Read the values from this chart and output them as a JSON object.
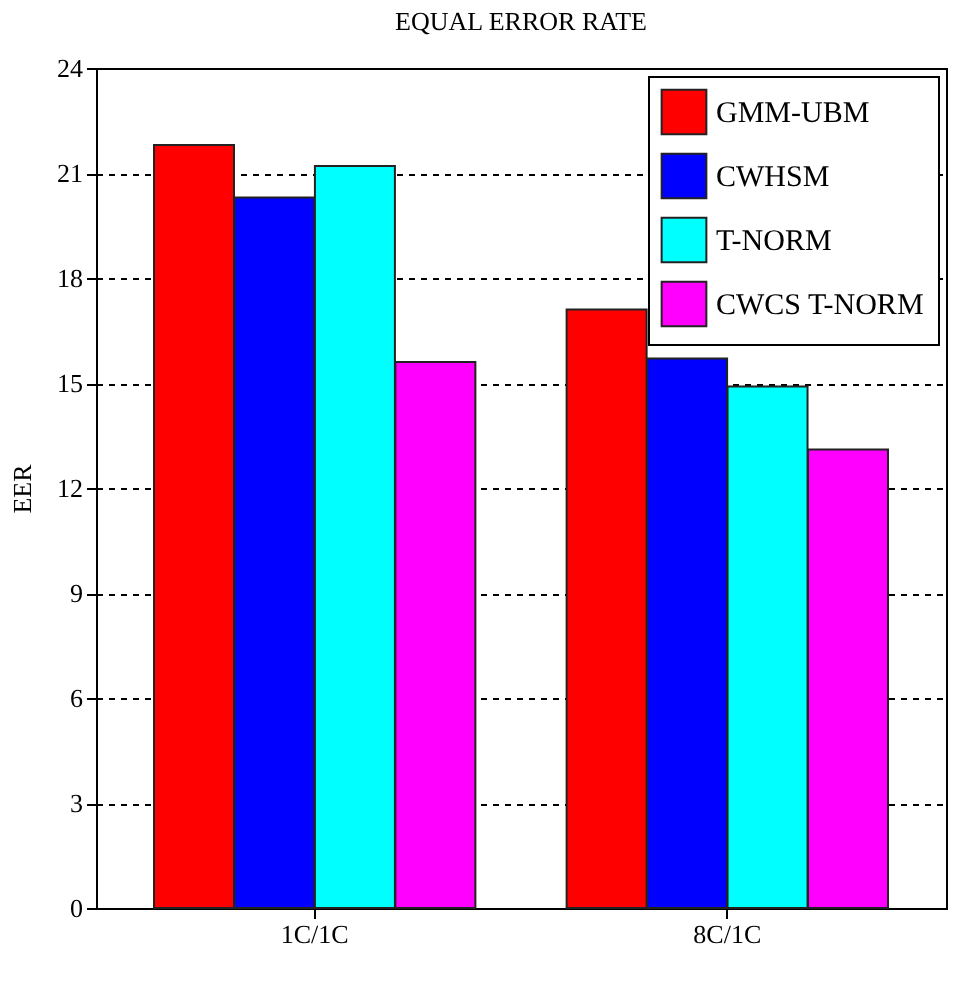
{
  "chart_data": {
    "type": "bar",
    "title": "EQUAL ERROR RATE",
    "ylabel": "EER",
    "categories": [
      "1C/1C",
      "8C/1C"
    ],
    "series": [
      {
        "name": "GMM-UBM",
        "color": "#ff0000",
        "values": [
          21.8,
          17.1
        ]
      },
      {
        "name": "CWHSM",
        "color": "#0000ff",
        "values": [
          20.3,
          15.7
        ]
      },
      {
        "name": "T-NORM",
        "color": "#00ffff",
        "values": [
          21.2,
          14.9
        ]
      },
      {
        "name": "CWCS T-NORM",
        "color": "#ff00ff",
        "values": [
          15.6,
          13.1
        ]
      }
    ],
    "ylim": [
      0,
      24
    ],
    "yticks": [
      0,
      3,
      6,
      9,
      12,
      15,
      18,
      21,
      24
    ],
    "grid": "y",
    "legend": "top right"
  }
}
